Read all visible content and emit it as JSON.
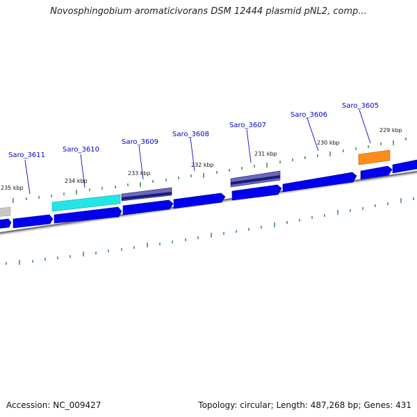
{
  "title": "Novosphingobium aromaticivorans DSM 12444 plasmid pNL2, comp...",
  "footer": {
    "accession": "Accession: NC_009427",
    "summary": "Topology: circular; Length: 487,268 bp; Genes: 431"
  },
  "gene_labels": [
    "Saro_3611",
    "Saro_3610",
    "Saro_3609",
    "Saro_3608",
    "Saro_3607",
    "Saro_3606",
    "Saro_3605"
  ],
  "kbp_labels": [
    "235 kbp",
    "234 kbp",
    "233 kbp",
    "232 kbp",
    "231 kbp",
    "230 kbp",
    "229 kbp"
  ],
  "colors": {
    "cds": "#0000ee",
    "highlight_cyan": "#22e6e6",
    "highlight_navy": "#1a1a80",
    "highlight_orange": "#ff8c1a",
    "backbone": "#888888",
    "tick": "#1a7a1a",
    "label": "#0000cc"
  }
}
